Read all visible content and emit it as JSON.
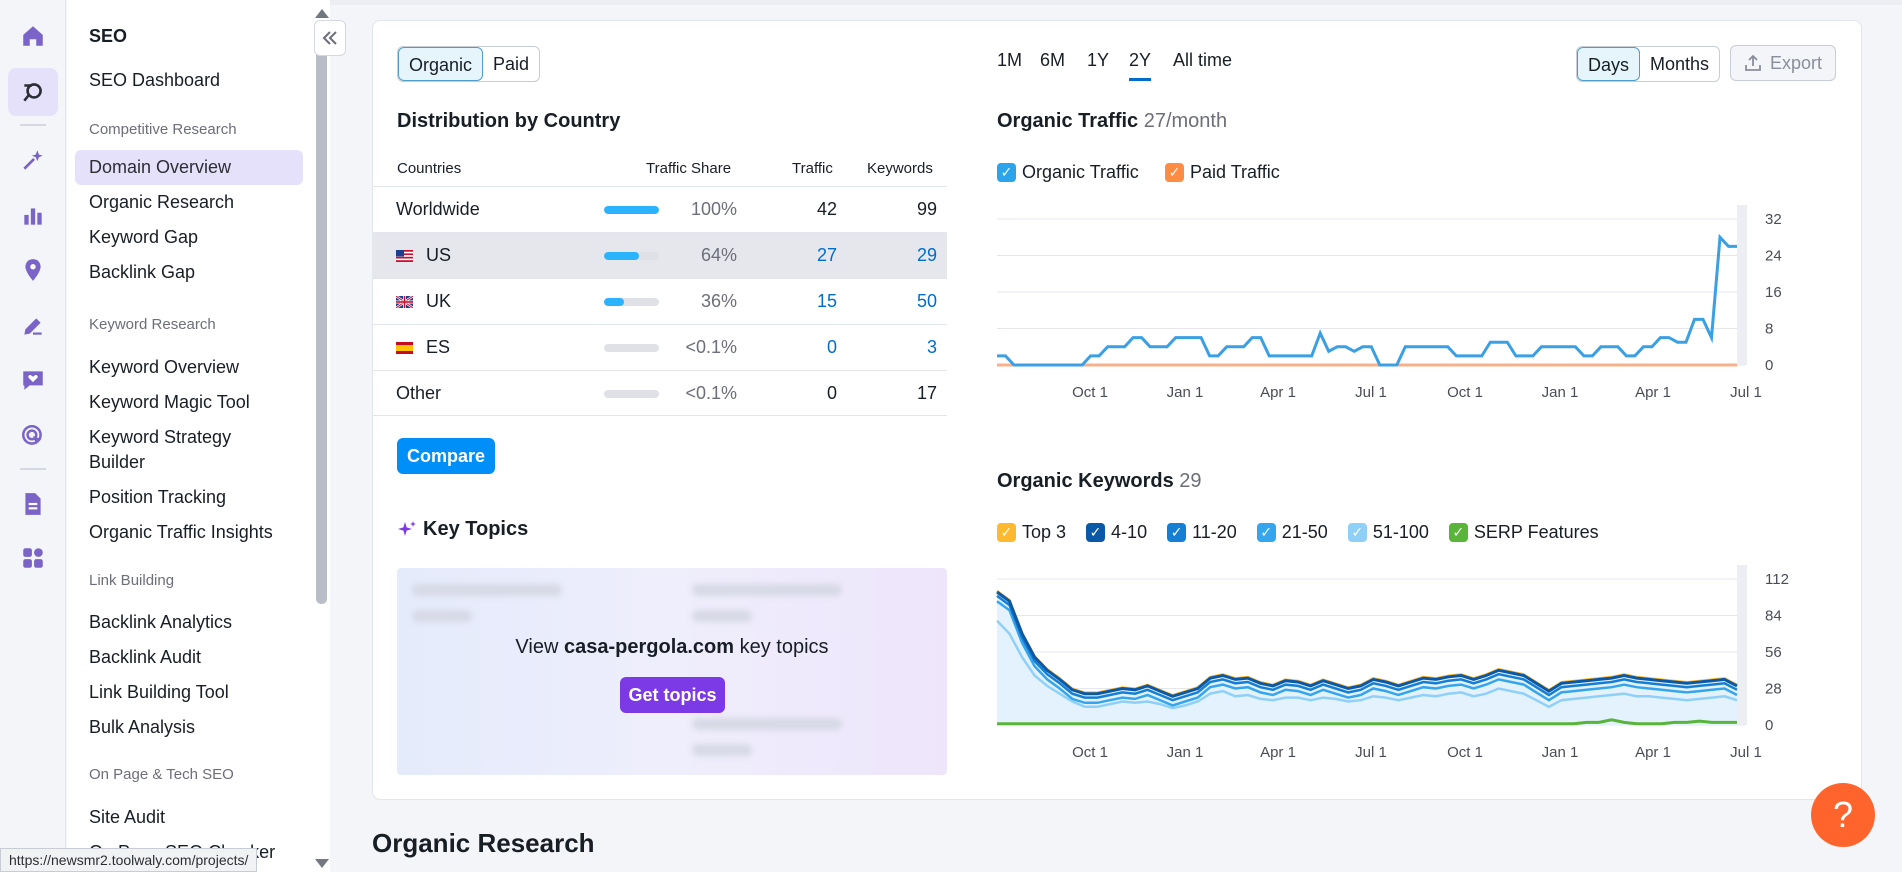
{
  "sidebar": {
    "title": "SEO",
    "dashboard": "SEO Dashboard",
    "sections": [
      {
        "label": "Competitive Research",
        "items": [
          "Domain Overview",
          "Organic Research",
          "Keyword Gap",
          "Backlink Gap"
        ]
      },
      {
        "label": "Keyword Research",
        "items": [
          "Keyword Overview",
          "Keyword Magic Tool",
          "Keyword Strategy Builder",
          "Position Tracking",
          "Organic Traffic Insights"
        ]
      },
      {
        "label": "Link Building",
        "items": [
          "Backlink Analytics",
          "Backlink Audit",
          "Link Building Tool",
          "Bulk Analysis"
        ]
      },
      {
        "label": "On Page & Tech SEO",
        "items": [
          "Site Audit",
          "On Page SEO Checker"
        ]
      }
    ],
    "active_item": "Domain Overview",
    "collapse_icon": "double-chevron-left-icon"
  },
  "rail_icons": [
    "home-icon",
    "seo-icon",
    "ai-sparkle-icon",
    "bar-chart-icon",
    "location-pin-icon",
    "pen-icon",
    "heart-chat-icon",
    "cursor-target-icon",
    "document-icon",
    "apps-grid-icon"
  ],
  "status_url": "https://newsmr2.toolwaly.com/projects/",
  "toggle": {
    "options": [
      "Organic",
      "Paid"
    ],
    "selected": "Organic"
  },
  "periods": {
    "options": [
      "1M",
      "6M",
      "1Y",
      "2Y",
      "All time"
    ],
    "selected": "2Y"
  },
  "granularity": {
    "options": [
      "Days",
      "Months"
    ],
    "selected": "Days"
  },
  "export_label": "Export",
  "distribution": {
    "title": "Distribution by Country",
    "headers": {
      "countries": "Countries",
      "share": "Traffic Share",
      "traffic": "Traffic",
      "keywords": "Keywords"
    },
    "rows": [
      {
        "name": "Worldwide",
        "flag": "",
        "share": "100%",
        "share_value": 1.0,
        "traffic": "42",
        "keywords": "99",
        "link": false
      },
      {
        "name": "US",
        "flag": "us",
        "share": "64%",
        "share_value": 0.64,
        "traffic": "27",
        "keywords": "29",
        "link": true
      },
      {
        "name": "UK",
        "flag": "uk",
        "share": "36%",
        "share_value": 0.36,
        "traffic": "15",
        "keywords": "50",
        "link": true
      },
      {
        "name": "ES",
        "flag": "es",
        "share": "<0.1%",
        "share_value": 0.0,
        "traffic": "0",
        "keywords": "3",
        "link": true
      },
      {
        "name": "Other",
        "flag": "",
        "share": "<0.1%",
        "share_value": 0.0,
        "traffic": "0",
        "keywords": "17",
        "link": false
      }
    ],
    "compare_label": "Compare"
  },
  "key_topics": {
    "title": "Key Topics",
    "text_prefix": "View",
    "domain": "casa-pergola.com",
    "text_suffix": "key topics",
    "button": "Get topics"
  },
  "organic_traffic": {
    "title": "Organic Traffic",
    "value": "27/month",
    "legend": [
      {
        "label": "Organic Traffic",
        "color": "#2ba4ec"
      },
      {
        "label": "Paid Traffic",
        "color": "#ff8c42"
      }
    ],
    "yticks": [
      "32",
      "24",
      "16",
      "8",
      "0"
    ],
    "xticks": [
      "Oct 1",
      "Jan 1",
      "Apr 1",
      "Jul 1",
      "Oct 1",
      "Jan 1",
      "Apr 1",
      "Jul 1"
    ]
  },
  "organic_keywords": {
    "title": "Organic Keywords",
    "value": "29",
    "legend": [
      {
        "label": "Top 3",
        "color": "#ffb92e"
      },
      {
        "label": "4-10",
        "color": "#0a58a8"
      },
      {
        "label": "11-20",
        "color": "#167fd4"
      },
      {
        "label": "21-50",
        "color": "#35a6ee"
      },
      {
        "label": "51-100",
        "color": "#8fd0f9"
      },
      {
        "label": "SERP Features",
        "color": "#59b43a"
      }
    ],
    "yticks": [
      "112",
      "84",
      "56",
      "28",
      "0"
    ],
    "xticks": [
      "Oct 1",
      "Jan 1",
      "Apr 1",
      "Jul 1",
      "Oct 1",
      "Jan 1",
      "Apr 1",
      "Jul 1"
    ]
  },
  "chart_data": [
    {
      "type": "line",
      "title": "Organic Traffic",
      "ylim": [
        0,
        32
      ],
      "series": [
        {
          "name": "Organic Traffic",
          "values": [
            2,
            2,
            0,
            0,
            0,
            0,
            0,
            0,
            0,
            0,
            0,
            2,
            2,
            4,
            4,
            4,
            6,
            6,
            4,
            4,
            4,
            6,
            6,
            6,
            6,
            2,
            2,
            4,
            4,
            4,
            6,
            6,
            2,
            2,
            2,
            2,
            2,
            2,
            7,
            3,
            4,
            4,
            3,
            4,
            4,
            0,
            0,
            0,
            4,
            4,
            4,
            4,
            4,
            4,
            2,
            2,
            2,
            2,
            5,
            5,
            5,
            2,
            2,
            2,
            4,
            4,
            4,
            4,
            4,
            2,
            2,
            4,
            4,
            4,
            2,
            2,
            4,
            4,
            6,
            6,
            5,
            5,
            10,
            10,
            6,
            28,
            26,
            26
          ]
        },
        {
          "name": "Paid Traffic",
          "values": [
            0,
            0,
            0,
            0,
            0,
            0,
            0,
            0,
            0,
            0,
            0,
            0,
            0,
            0,
            0,
            0,
            0,
            0,
            0,
            0,
            0,
            0,
            0,
            0,
            0,
            0,
            0,
            0,
            0,
            0,
            0,
            0,
            0,
            0,
            0,
            0,
            0,
            0,
            0,
            0,
            0,
            0,
            0,
            0,
            0,
            0,
            0,
            0,
            0,
            0,
            0,
            0,
            0,
            0,
            0,
            0,
            0,
            0,
            0,
            0,
            0,
            0,
            0,
            0,
            0,
            0,
            0,
            0,
            0,
            0,
            0,
            0,
            0,
            0,
            0,
            0,
            0,
            0,
            0,
            0,
            0,
            0,
            0,
            0,
            0,
            0,
            0,
            0
          ]
        }
      ]
    },
    {
      "type": "area",
      "title": "Organic Keywords",
      "ylim": [
        0,
        112
      ],
      "series": [
        {
          "name": "4-10",
          "values": [
            102,
            95,
            70,
            52,
            42,
            35,
            27,
            24,
            24,
            26,
            28,
            27,
            30,
            26,
            22,
            25,
            28,
            36,
            38,
            35,
            36,
            32,
            30,
            34,
            33,
            30,
            34,
            31,
            28,
            30,
            35,
            33,
            30,
            33,
            36,
            35,
            37,
            38,
            35,
            38,
            42,
            40,
            38,
            32,
            26,
            32,
            33,
            34,
            35,
            36,
            38,
            36,
            35,
            34,
            33,
            32,
            33,
            34,
            35,
            30
          ]
        },
        {
          "name": "51-100",
          "values": [
            80,
            70,
            52,
            38,
            30,
            24,
            18,
            14,
            14,
            16,
            18,
            17,
            18,
            16,
            13,
            15,
            18,
            24,
            26,
            22,
            23,
            20,
            19,
            21,
            21,
            19,
            21,
            20,
            18,
            19,
            22,
            21,
            19,
            21,
            23,
            22,
            24,
            25,
            22,
            24,
            28,
            26,
            24,
            19,
            14,
            19,
            20,
            21,
            22,
            23,
            24,
            22,
            22,
            21,
            20,
            19,
            20,
            21,
            22,
            19
          ]
        },
        {
          "name": "SERP Features",
          "values": [
            1,
            1,
            1,
            1,
            1,
            1,
            1,
            1,
            1,
            1,
            1,
            1,
            1,
            1,
            1,
            1,
            1,
            1,
            1,
            1,
            1,
            1,
            1,
            1,
            1,
            1,
            1,
            1,
            1,
            1,
            1,
            1,
            1,
            1,
            1,
            1,
            1,
            1,
            1,
            1,
            1,
            1,
            1,
            1,
            1,
            1,
            1,
            2,
            2,
            4,
            2,
            1,
            1,
            1,
            2,
            2,
            3,
            2,
            2,
            2
          ]
        }
      ]
    }
  ],
  "section_title": "Organic Research",
  "help_label": "?"
}
